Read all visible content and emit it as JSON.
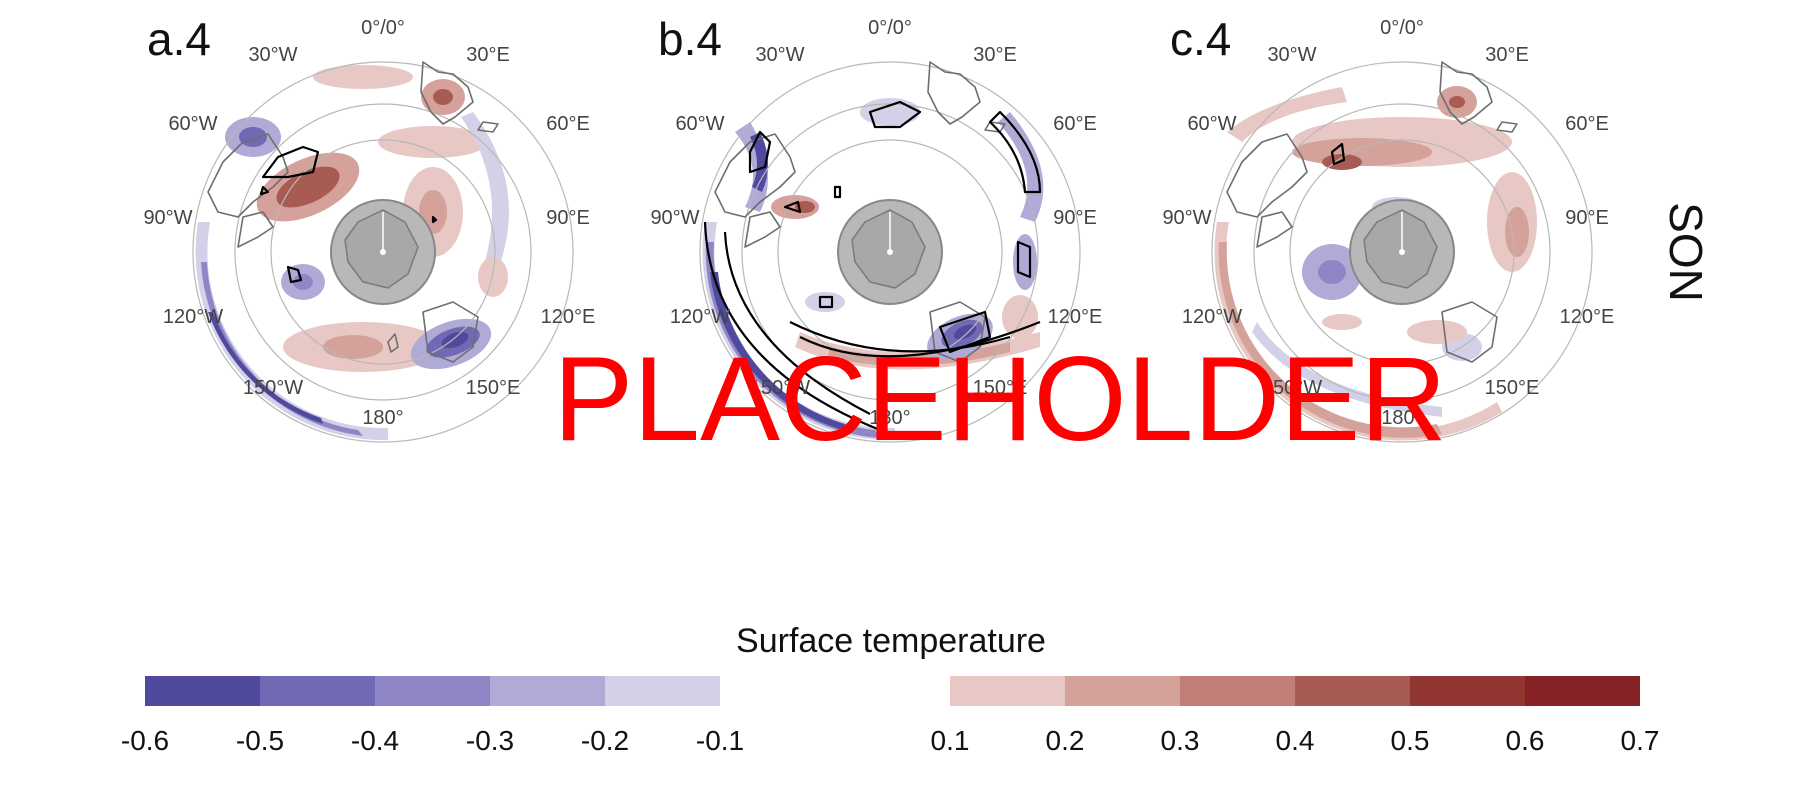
{
  "panels": [
    {
      "label": "a.4"
    },
    {
      "label": "b.4"
    },
    {
      "label": "c.4"
    }
  ],
  "lon_labels": [
    "0°/0°",
    "30°E",
    "60°E",
    "90°E",
    "120°E",
    "150°E",
    "180°",
    "150°W",
    "120°W",
    "90°W",
    "60°W",
    "30°W"
  ],
  "season_label": "SON",
  "colorbar": {
    "title": "Surface temperature",
    "negative": {
      "ticks": [
        "-0.6",
        "-0.5",
        "-0.4",
        "-0.3",
        "-0.2",
        "-0.1"
      ],
      "colors": [
        "#4f4a9e",
        "#7169b3",
        "#8f87c5",
        "#b0abd6",
        "#d3d0e8"
      ]
    },
    "positive": {
      "ticks": [
        "0.1",
        "0.2",
        "0.3",
        "0.4",
        "0.5",
        "0.6",
        "0.7"
      ],
      "colors": [
        "#e8c8c4",
        "#d4a19b",
        "#bf7f77",
        "#a85b52",
        "#923632",
        "#842226"
      ]
    }
  },
  "watermark": "PLACEHOLDER",
  "colors": {
    "land_mask": "#b8b8b8",
    "coast": "#6e6e6e",
    "significance_contour": "#000000"
  }
}
